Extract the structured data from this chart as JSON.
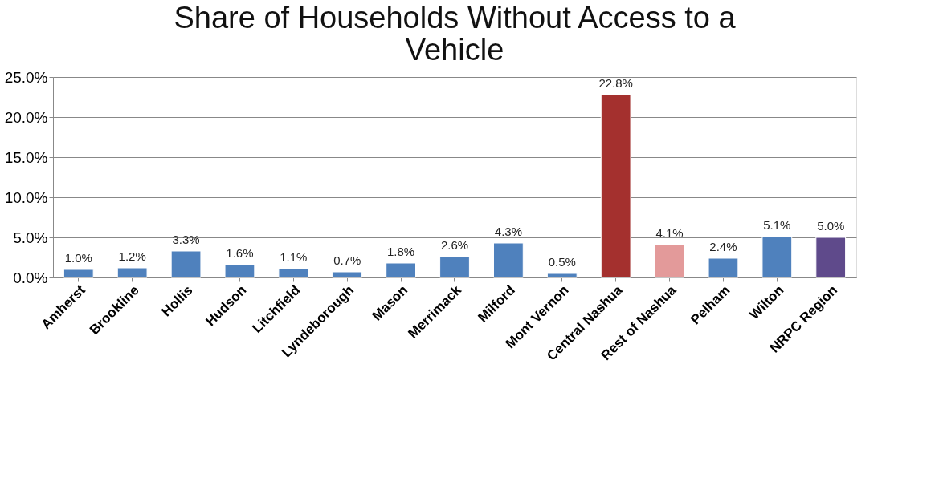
{
  "chart_data": {
    "type": "bar",
    "title": "Share of Households Without Access to a Vehicle",
    "categories": [
      "Amherst",
      "Brookline",
      "Hollis",
      "Hudson",
      "Litchfield",
      "Lyndeborough",
      "Mason",
      "Merrimack",
      "Milford",
      "Mont Vernon",
      "Central Nashua",
      "Rest of Nashua",
      "Pelham",
      "Wilton",
      "NRPC Region"
    ],
    "values": [
      1.0,
      1.2,
      3.3,
      1.6,
      1.1,
      0.7,
      1.8,
      2.6,
      4.3,
      0.5,
      22.8,
      4.1,
      2.4,
      5.1,
      5.0
    ],
    "value_labels": [
      "1.0%",
      "1.2%",
      "3.3%",
      "1.6%",
      "1.1%",
      "0.7%",
      "1.8%",
      "2.6%",
      "4.3%",
      "0.5%",
      "22.8%",
      "4.1%",
      "2.4%",
      "5.1%",
      "5.0%"
    ],
    "colors": [
      "#4f81bd",
      "#4f81bd",
      "#4f81bd",
      "#4f81bd",
      "#4f81bd",
      "#4f81bd",
      "#4f81bd",
      "#4f81bd",
      "#4f81bd",
      "#4f81bd",
      "#a4302e",
      "#e39a9a",
      "#4f81bd",
      "#4f81bd",
      "#5f4a8b"
    ],
    "ylim": [
      0,
      25
    ],
    "yticks": [
      {
        "value": 0,
        "label": "0.0%"
      },
      {
        "value": 5,
        "label": "5.0%"
      },
      {
        "value": 10,
        "label": "10.0%"
      },
      {
        "value": 15,
        "label": "15.0%"
      },
      {
        "value": 20,
        "label": "20.0%"
      },
      {
        "value": 25,
        "label": "25.0%"
      }
    ],
    "grid": "y"
  }
}
